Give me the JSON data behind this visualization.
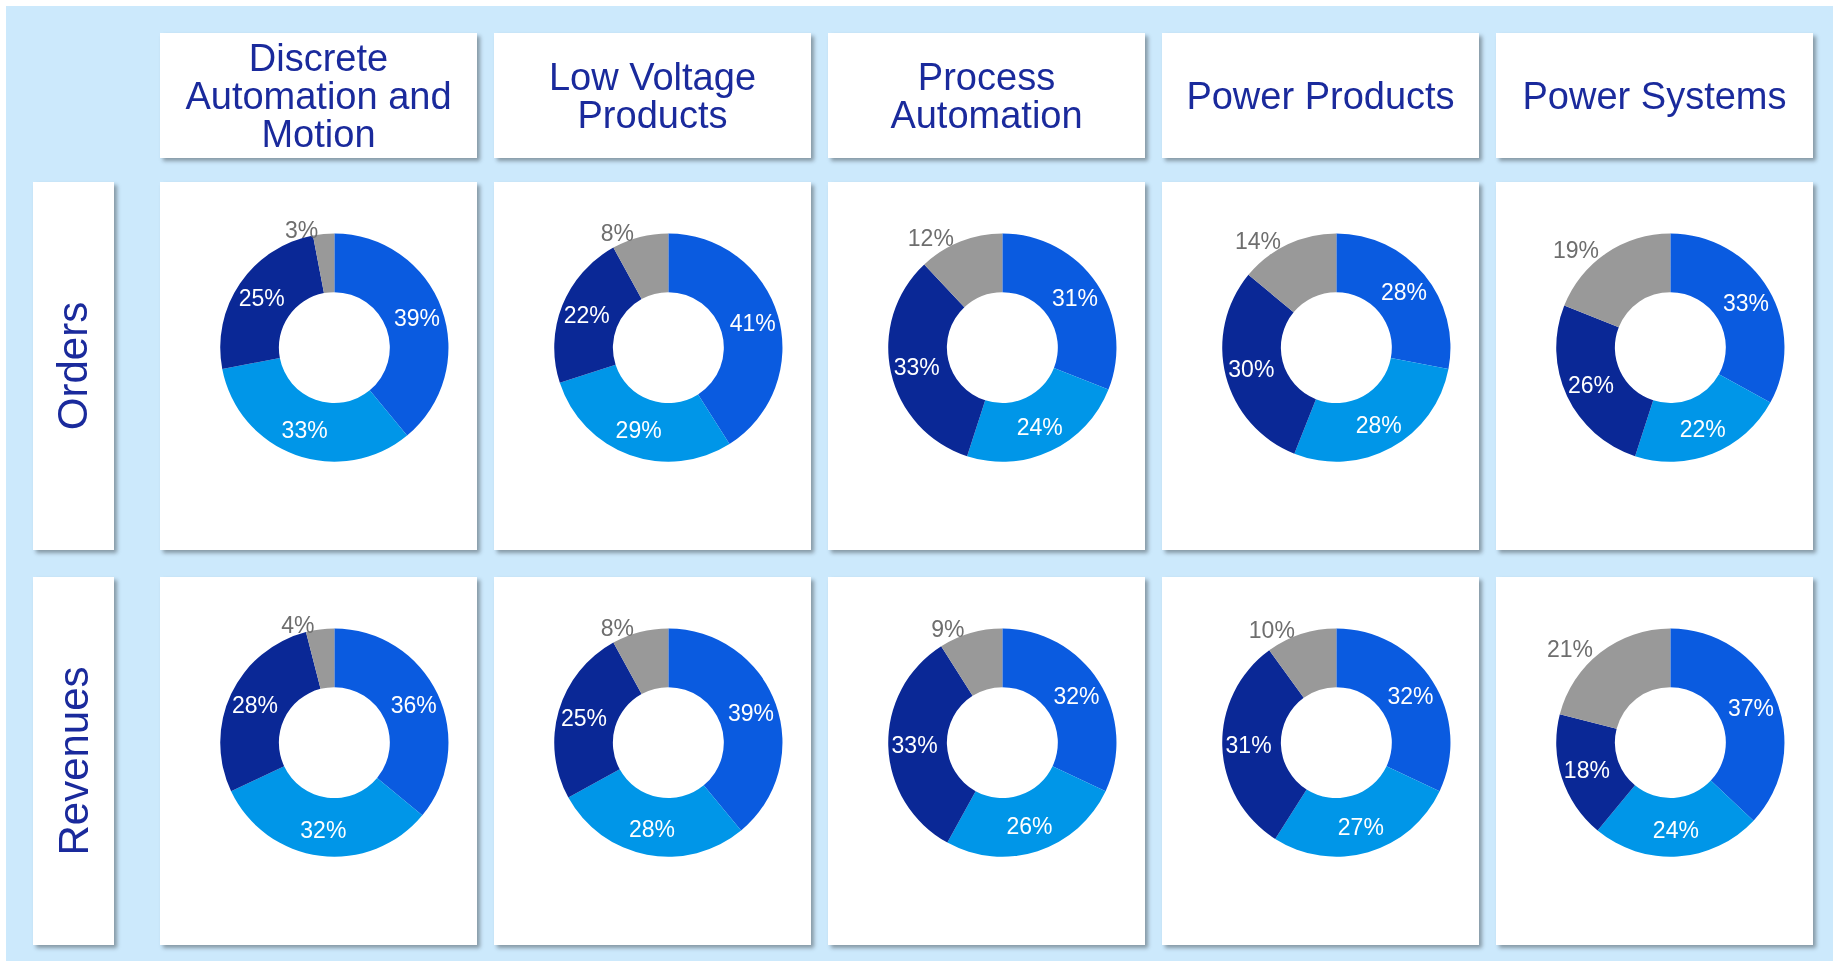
{
  "chart_data": [
    {
      "type": "donut",
      "title": "Discrete Automation and Motion",
      "ylabel": "Orders",
      "categories": [
        null,
        null,
        null,
        null
      ],
      "values": [
        39,
        33,
        25,
        3
      ],
      "value_labels": [
        "39%",
        "33%",
        "25%",
        "3%"
      ],
      "colors": [
        "#0a5be0",
        "#0096e8",
        "#0a2896",
        "#999999"
      ]
    },
    {
      "type": "donut",
      "title": "Low Voltage Products",
      "categories": [
        null,
        null,
        null,
        null
      ],
      "values": [
        41,
        29,
        22,
        8
      ],
      "value_labels": [
        "41%",
        "29%",
        "22%",
        "8%"
      ],
      "colors": [
        "#0a5be0",
        "#0096e8",
        "#0a2896",
        "#999999"
      ]
    },
    {
      "type": "donut",
      "title": "Process Automation",
      "categories": [
        null,
        null,
        null,
        null
      ],
      "values": [
        31,
        24,
        33,
        12
      ],
      "value_labels": [
        "31%",
        "24%",
        "33%",
        "12%"
      ],
      "colors": [
        "#0a5be0",
        "#0096e8",
        "#0a2896",
        "#999999"
      ]
    },
    {
      "type": "donut",
      "title": "Power Products",
      "categories": [
        null,
        null,
        null,
        null
      ],
      "values": [
        28,
        28,
        30,
        14
      ],
      "value_labels": [
        "28%",
        "28%",
        "30%",
        "14%"
      ],
      "colors": [
        "#0a5be0",
        "#0096e8",
        "#0a2896",
        "#999999"
      ]
    },
    {
      "type": "donut",
      "title": "Power Systems",
      "categories": [
        null,
        null,
        null,
        null
      ],
      "values": [
        33,
        22,
        26,
        19
      ],
      "value_labels": [
        "33%",
        "22%",
        "26%",
        "19%"
      ],
      "colors": [
        "#0a5be0",
        "#0096e8",
        "#0a2896",
        "#999999"
      ]
    },
    {
      "type": "donut",
      "ylabel": "Revenues",
      "categories": [
        null,
        null,
        null,
        null
      ],
      "values": [
        36,
        32,
        28,
        4
      ],
      "value_labels": [
        "36%",
        "32%",
        "28%",
        "4%"
      ],
      "colors": [
        "#0a5be0",
        "#0096e8",
        "#0a2896",
        "#999999"
      ]
    },
    {
      "type": "donut",
      "categories": [
        null,
        null,
        null,
        null
      ],
      "values": [
        39,
        28,
        25,
        8
      ],
      "value_labels": [
        "39%",
        "28%",
        "25%",
        "8%"
      ],
      "colors": [
        "#0a5be0",
        "#0096e8",
        "#0a2896",
        "#999999"
      ]
    },
    {
      "type": "donut",
      "categories": [
        null,
        null,
        null,
        null
      ],
      "values": [
        32,
        26,
        33,
        9
      ],
      "value_labels": [
        "32%",
        "26%",
        "33%",
        "9%"
      ],
      "colors": [
        "#0a5be0",
        "#0096e8",
        "#0a2896",
        "#999999"
      ]
    },
    {
      "type": "donut",
      "categories": [
        null,
        null,
        null,
        null
      ],
      "values": [
        32,
        27,
        31,
        10
      ],
      "value_labels": [
        "32%",
        "27%",
        "31%",
        "10%"
      ],
      "colors": [
        "#0a5be0",
        "#0096e8",
        "#0a2896",
        "#999999"
      ]
    },
    {
      "type": "donut",
      "categories": [
        null,
        null,
        null,
        null
      ],
      "values": [
        37,
        24,
        18,
        21
      ],
      "value_labels": [
        "37%",
        "24%",
        "18%",
        "21%"
      ],
      "colors": [
        "#0a5be0",
        "#0096e8",
        "#0a2896",
        "#999999"
      ]
    }
  ]
}
